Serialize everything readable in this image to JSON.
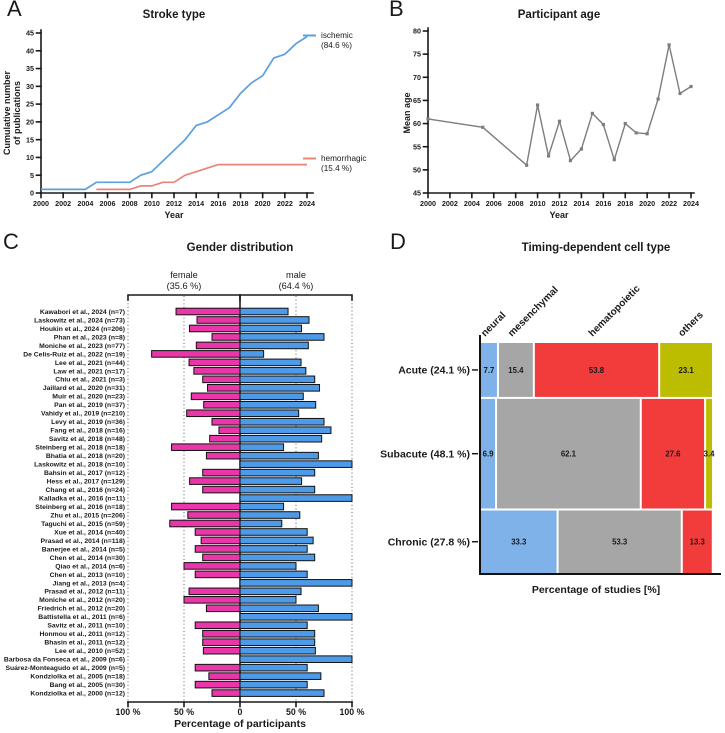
{
  "panels": {
    "A": {
      "letter": "A",
      "title": "Stroke type",
      "xlabel": "Year",
      "ylabel_lines": [
        "Cumulative number",
        "of publications"
      ],
      "legend": [
        {
          "name": "ischemic",
          "pct": "(84.6 %)"
        },
        {
          "name": "hemorrhagic",
          "pct": "(15.4 %)"
        }
      ]
    },
    "B": {
      "letter": "B",
      "title": "Participant age",
      "xlabel": "Year",
      "ylabel": "Mean age"
    },
    "C": {
      "letter": "C",
      "title": "Gender distribution",
      "xlabel": "Percentage of participants",
      "left_header_lines": [
        "female",
        "(35.6 %)"
      ],
      "right_header_lines": [
        "male",
        "(64.4 %)"
      ]
    },
    "D": {
      "letter": "D",
      "title": "Timing-dependent cell type",
      "xlabel": "Percentage of studies [%]"
    }
  },
  "chart_data": [
    {
      "panel": "A",
      "type": "line",
      "title": "Stroke type",
      "xlabel": "Year",
      "ylabel": "Cumulative number of publications",
      "xlim": [
        2000,
        2024
      ],
      "ylim": [
        0,
        45
      ],
      "xticks": [
        2000,
        2002,
        2004,
        2006,
        2008,
        2010,
        2012,
        2014,
        2016,
        2018,
        2020,
        2022,
        2024
      ],
      "yticks": [
        0,
        5,
        10,
        15,
        20,
        25,
        30,
        35,
        40,
        45
      ],
      "grid": false,
      "legend_position": "right",
      "series": [
        {
          "name": "ischemic",
          "share_label": "(84.6 %)",
          "color": "#5B9FDC",
          "x": [
            2000,
            2001,
            2002,
            2003,
            2004,
            2005,
            2006,
            2007,
            2008,
            2009,
            2010,
            2011,
            2012,
            2013,
            2014,
            2015,
            2016,
            2017,
            2018,
            2019,
            2020,
            2021,
            2022,
            2023,
            2024
          ],
          "y": [
            1,
            1,
            1,
            1,
            1,
            3,
            3,
            3,
            3,
            5,
            6,
            9,
            12,
            15,
            19,
            20,
            22,
            24,
            28,
            31,
            33,
            38,
            39,
            42,
            44
          ]
        },
        {
          "name": "hemorrhagic",
          "share_label": "(15.4 %)",
          "color": "#E8857B",
          "x": [
            2005,
            2006,
            2007,
            2008,
            2009,
            2010,
            2011,
            2012,
            2013,
            2014,
            2015,
            2016,
            2017,
            2018,
            2019,
            2020,
            2021,
            2022,
            2023,
            2024
          ],
          "y": [
            1,
            1,
            1,
            1,
            2,
            2,
            3,
            3,
            5,
            6,
            7,
            8,
            8,
            8,
            8,
            8,
            8,
            8,
            8,
            8
          ]
        }
      ]
    },
    {
      "panel": "B",
      "type": "line",
      "title": "Participant age",
      "xlabel": "Year",
      "ylabel": "Mean age",
      "xlim": [
        2000,
        2024
      ],
      "ylim": [
        45,
        80
      ],
      "xticks": [
        2000,
        2002,
        2004,
        2006,
        2008,
        2010,
        2012,
        2014,
        2016,
        2018,
        2020,
        2022,
        2024
      ],
      "yticks": [
        45,
        50,
        55,
        60,
        65,
        70,
        75,
        80
      ],
      "grid": false,
      "series": [
        {
          "name": "mean-age",
          "color": "#7D7D7D",
          "marker": "square",
          "x": [
            2000,
            2005,
            2009,
            2010,
            2011,
            2012,
            2013,
            2014,
            2015,
            2016,
            2017,
            2018,
            2019,
            2020,
            2021,
            2022,
            2023,
            2024
          ],
          "y": [
            61,
            59.2,
            51,
            64,
            53,
            60.5,
            52,
            54.5,
            62.2,
            59.8,
            52.2,
            60,
            58,
            57.8,
            65.3,
            77,
            66.5,
            68
          ]
        }
      ]
    },
    {
      "panel": "C",
      "type": "bar",
      "subtype": "diverging-horizontal",
      "title": "Gender distribution",
      "xlabel": "Percentage of participants",
      "female_total_pct": 35.6,
      "male_total_pct": 64.4,
      "female_color": "#E936A8",
      "male_color": "#4D9BE8",
      "xtick_labels": [
        "100 %",
        "50 %",
        "0",
        "50 %",
        "100 %"
      ],
      "studies": [
        {
          "label": "Kawabori et al., 2024 (n=7)",
          "female": 57.1,
          "male": 42.9
        },
        {
          "label": "Laskowitz et al., 2024 (n=73)",
          "female": 38.4,
          "male": 61.6
        },
        {
          "label": "Houkin et al., 2024 (n=206)",
          "female": 45.1,
          "male": 54.9
        },
        {
          "label": "Phan et al., 2023 (n=8)",
          "female": 25.0,
          "male": 75.0
        },
        {
          "label": "Moniche et al., 2023 (n=77)",
          "female": 39.0,
          "male": 61.0
        },
        {
          "label": "De Celis-Ruiz et al., 2022 (n=19)",
          "female": 78.9,
          "male": 21.1
        },
        {
          "label": "Lee et al., 2021 (n=44)",
          "female": 45.5,
          "male": 54.5
        },
        {
          "label": "Law et al., 2021 (n=17)",
          "female": 41.2,
          "male": 58.8
        },
        {
          "label": "Chiu et al., 2021 (n=3)",
          "female": 33.3,
          "male": 66.7
        },
        {
          "label": "Jaillard et al., 2020 (n=31)",
          "female": 29.0,
          "male": 71.0
        },
        {
          "label": "Muir et al., 2020 (n=23)",
          "female": 43.5,
          "male": 56.5
        },
        {
          "label": "Pan et al., 2019 (n=37)",
          "female": 32.4,
          "male": 67.6
        },
        {
          "label": "Vahidy et al., 2019 (n=210)",
          "female": 47.6,
          "male": 52.4
        },
        {
          "label": "Levy et al., 2019 (n=36)",
          "female": 25.0,
          "male": 75.0
        },
        {
          "label": "Fang et al., 2018 (n=16)",
          "female": 18.8,
          "male": 81.2
        },
        {
          "label": "Savitz et al, 2018 (n=48)",
          "female": 27.1,
          "male": 72.9
        },
        {
          "label": "Steinberg et al., 2018 (n=18)",
          "female": 61.1,
          "male": 38.9
        },
        {
          "label": "Bhatia et al., 2018 (n=20)",
          "female": 30.0,
          "male": 70.0
        },
        {
          "label": "Laskowitz et al., 2018 (n=10)",
          "female": 0,
          "male": 100.0
        },
        {
          "label": "Bahsin et al., 2017 (n=12)",
          "female": 33.3,
          "male": 66.7
        },
        {
          "label": "Hess et al., 2017 (n=129)",
          "female": 45.0,
          "male": 55.0
        },
        {
          "label": "Chang et al., 2016 (n=24)",
          "female": 33.3,
          "male": 66.7
        },
        {
          "label": "Kalladka et al., 2016 (n=11)",
          "female": 0,
          "male": 100.0
        },
        {
          "label": "Steinberg et al., 2016 (n=18)",
          "female": 61.1,
          "male": 38.9
        },
        {
          "label": "Zhu et al., 2015 (n=206)",
          "female": 46.6,
          "male": 53.4
        },
        {
          "label": "Taguchi et al., 2015 (n=59)",
          "female": 62.7,
          "male": 37.3
        },
        {
          "label": "Xue et al., 2014 (n=40)",
          "female": 40.0,
          "male": 60.0
        },
        {
          "label": "Prasad et al., 2014 (n=118)",
          "female": 34.7,
          "male": 65.3
        },
        {
          "label": "Banerjee et al., 2014 (n=5)",
          "female": 40.0,
          "male": 60.0
        },
        {
          "label": "Chen et al., 2014 (n=30)",
          "female": 33.3,
          "male": 66.7
        },
        {
          "label": "Qiao et al., 2014 (n=6)",
          "female": 50.0,
          "male": 50.0
        },
        {
          "label": "Chen et al., 2013 (n=10)",
          "female": 40.0,
          "male": 60.0
        },
        {
          "label": "Jiang et al., 2013 (n=4)",
          "female": 0,
          "male": 100.0
        },
        {
          "label": "Prasad et al., 2012 (n=11)",
          "female": 45.5,
          "male": 54.5
        },
        {
          "label": "Moniche et al., 2012 (n=20)",
          "female": 50.0,
          "male": 50.0
        },
        {
          "label": "Friedrich et al., 2012 (n=20)",
          "female": 30.0,
          "male": 70.0
        },
        {
          "label": "Battistella et al., 2011 (n=6)",
          "female": 0,
          "male": 100.0
        },
        {
          "label": "Savitz et al., 2011 (n=10)",
          "female": 40.0,
          "male": 60.0
        },
        {
          "label": "Honmou et al., 2011 (n=12)",
          "female": 33.3,
          "male": 66.7
        },
        {
          "label": "Bhasin et al., 2011 (n=12)",
          "female": 33.3,
          "male": 66.7
        },
        {
          "label": "Lee et al., 2010 (n=52)",
          "female": 32.7,
          "male": 67.3
        },
        {
          "label": "Barbosa da Fonseca et al., 2009 (n=6)",
          "female": 0,
          "male": 100.0
        },
        {
          "label": "Suárez-Monteagudo et al., 2009 (n=5)",
          "female": 40.0,
          "male": 60.0
        },
        {
          "label": "Kondziolka et al., 2005 (n=18)",
          "female": 27.8,
          "male": 72.2
        },
        {
          "label": "Bang et al., 2005 (n=30)",
          "female": 40.0,
          "male": 60.0
        },
        {
          "label": "Kondziolka et al., 2000 (n=12)",
          "female": 25.0,
          "male": 75.0
        }
      ]
    },
    {
      "panel": "D",
      "type": "heatmap",
      "subtype": "mosaic",
      "title": "Timing-dependent cell type",
      "xlabel": "Percentage of studies [%]",
      "columns": [
        {
          "name": "neural",
          "color": "#7FB2E8"
        },
        {
          "name": "mesenchymal",
          "color": "#A6A6A6"
        },
        {
          "name": "hematopoietic",
          "color": "#F23B3B"
        },
        {
          "name": "others",
          "color": "#BCBD00"
        }
      ],
      "rows": [
        {
          "label": "Acute (24.1 %)",
          "row_pct": 24.1,
          "values": [
            7.7,
            15.4,
            53.8,
            23.1
          ]
        },
        {
          "label": "Subacute (48.1 %)",
          "row_pct": 48.1,
          "values": [
            6.9,
            62.1,
            27.6,
            3.4
          ]
        },
        {
          "label": "Chronic (27.8 %)",
          "row_pct": 27.8,
          "values": [
            33.3,
            53.3,
            13.3,
            0
          ]
        }
      ]
    }
  ]
}
